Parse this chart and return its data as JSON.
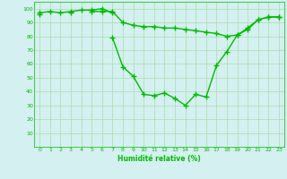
{
  "x": [
    0,
    1,
    2,
    3,
    4,
    5,
    6,
    7,
    8,
    9,
    10,
    11,
    12,
    13,
    14,
    15,
    16,
    17,
    18,
    19,
    20,
    21,
    22,
    23
  ],
  "line1": [
    97,
    98,
    97,
    98,
    99,
    99,
    100,
    97,
    null,
    null,
    null,
    null,
    null,
    null,
    null,
    null,
    null,
    null,
    null,
    null,
    null,
    null,
    null,
    null
  ],
  "line2": [
    96,
    null,
    null,
    97,
    null,
    98,
    98,
    98,
    90,
    88,
    87,
    87,
    86,
    86,
    85,
    84,
    83,
    82,
    80,
    81,
    86,
    92,
    94,
    94
  ],
  "line3": [
    null,
    null,
    null,
    null,
    null,
    null,
    null,
    79,
    58,
    51,
    38,
    37,
    39,
    35,
    30,
    38,
    36,
    59,
    69,
    81,
    85,
    92,
    94,
    94
  ],
  "xlabel": "Humidité relative (%)",
  "xlim": [
    -0.5,
    23.5
  ],
  "ylim": [
    0,
    105
  ],
  "yticks": [
    10,
    20,
    30,
    40,
    50,
    60,
    70,
    80,
    90,
    100
  ],
  "xticks": [
    0,
    1,
    2,
    3,
    4,
    5,
    6,
    7,
    8,
    9,
    10,
    11,
    12,
    13,
    14,
    15,
    16,
    17,
    18,
    19,
    20,
    21,
    22,
    23
  ],
  "line_color": "#00bb00",
  "bg_color": "#d4f0f0",
  "grid_color": "#aaddaa",
  "marker": "+",
  "markersize": 4,
  "linewidth": 1.0
}
